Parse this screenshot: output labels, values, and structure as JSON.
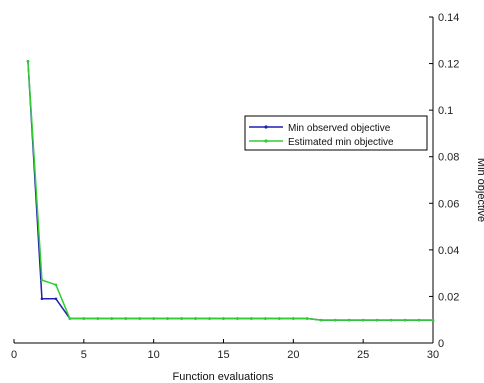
{
  "chart_data": {
    "type": "line",
    "title": "",
    "xlabel": "Function evaluations",
    "ylabel": "Min objective",
    "xlim": [
      0,
      30
    ],
    "ylim": [
      0,
      0.14
    ],
    "x_ticks": [
      0,
      5,
      10,
      15,
      20,
      25,
      30
    ],
    "y_ticks": [
      0,
      0.02,
      0.04,
      0.06,
      0.08,
      0.1,
      0.12,
      0.14
    ],
    "y_tick_labels": [
      "0",
      "0.02",
      "0.04",
      "0.06",
      "0.08",
      "0.1",
      "0.12",
      "0.14"
    ],
    "y_axis_side": "right",
    "grid": false,
    "legend_position": "center-right",
    "series": [
      {
        "name": "Min observed objective",
        "color": "#1f1fb4",
        "marker": "dot",
        "x": [
          1,
          2,
          3,
          4,
          5,
          6,
          7,
          8,
          9,
          10,
          11,
          12,
          13,
          14,
          15,
          16,
          17,
          18,
          19,
          20,
          21,
          22,
          23,
          24,
          25,
          26,
          27,
          28,
          29,
          30
        ],
        "y": [
          0.121,
          0.019,
          0.019,
          0.0105,
          0.0105,
          0.0105,
          0.0105,
          0.0105,
          0.0105,
          0.0105,
          0.0105,
          0.0105,
          0.0105,
          0.0105,
          0.0105,
          0.0105,
          0.0105,
          0.0105,
          0.0105,
          0.0105,
          0.0105,
          0.0098,
          0.0098,
          0.0098,
          0.0098,
          0.0098,
          0.0098,
          0.0098,
          0.0098,
          0.0098
        ]
      },
      {
        "name": "Estimated min objective",
        "color": "#33cc33",
        "marker": "dot",
        "x": [
          1,
          2,
          3,
          4,
          5,
          6,
          7,
          8,
          9,
          10,
          11,
          12,
          13,
          14,
          15,
          16,
          17,
          18,
          19,
          20,
          21,
          22,
          23,
          24,
          25,
          26,
          27,
          28,
          29,
          30
        ],
        "y": [
          0.121,
          0.027,
          0.025,
          0.0105,
          0.0105,
          0.0105,
          0.0105,
          0.0105,
          0.0105,
          0.0105,
          0.0105,
          0.0105,
          0.0105,
          0.0105,
          0.0105,
          0.0105,
          0.0105,
          0.0105,
          0.0105,
          0.0105,
          0.0105,
          0.0098,
          0.0098,
          0.0098,
          0.0098,
          0.0098,
          0.0098,
          0.0098,
          0.0098,
          0.0098
        ]
      }
    ]
  }
}
